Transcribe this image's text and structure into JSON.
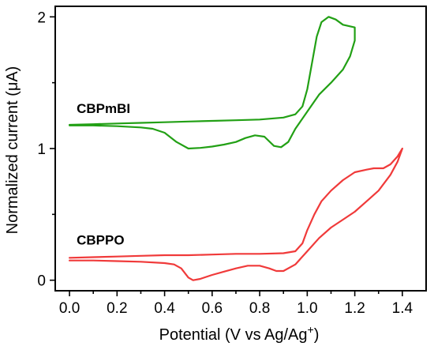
{
  "chart_data": {
    "type": "line",
    "title": "",
    "xlabel_main": "Potential (V vs Ag/Ag",
    "xlabel_sup": "+",
    "xlabel_close": ")",
    "ylabel": "Normalized current (μA)",
    "xlim": [
      -0.06,
      1.5
    ],
    "ylim": [
      -0.08,
      2.08
    ],
    "xticks": [
      0.0,
      0.2,
      0.4,
      0.6,
      0.8,
      1.0,
      1.2,
      1.4
    ],
    "xtick_labels": [
      "0.0",
      "0.2",
      "0.4",
      "0.6",
      "0.8",
      "1.0",
      "1.2",
      "1.4"
    ],
    "yticks": [
      0,
      1,
      2
    ],
    "ytick_labels": [
      "0",
      "1",
      "2"
    ],
    "grid": false,
    "legend": "none",
    "series": [
      {
        "name": "CBPmBI",
        "color": "#22a015",
        "label_at": [
          0.03,
          1.27
        ],
        "points": [
          [
            0.0,
            1.18
          ],
          [
            0.1,
            1.185
          ],
          [
            0.2,
            1.19
          ],
          [
            0.3,
            1.195
          ],
          [
            0.4,
            1.2
          ],
          [
            0.5,
            1.205
          ],
          [
            0.6,
            1.21
          ],
          [
            0.7,
            1.215
          ],
          [
            0.8,
            1.22
          ],
          [
            0.9,
            1.235
          ],
          [
            0.95,
            1.26
          ],
          [
            0.98,
            1.32
          ],
          [
            1.0,
            1.45
          ],
          [
            1.02,
            1.65
          ],
          [
            1.04,
            1.85
          ],
          [
            1.06,
            1.96
          ],
          [
            1.09,
            2.0
          ],
          [
            1.12,
            1.98
          ],
          [
            1.15,
            1.94
          ],
          [
            1.2,
            1.92
          ],
          [
            1.2,
            1.82
          ],
          [
            1.18,
            1.7
          ],
          [
            1.15,
            1.6
          ],
          [
            1.1,
            1.5
          ],
          [
            1.05,
            1.41
          ],
          [
            1.0,
            1.28
          ],
          [
            0.95,
            1.15
          ],
          [
            0.92,
            1.05
          ],
          [
            0.89,
            1.01
          ],
          [
            0.86,
            1.02
          ],
          [
            0.82,
            1.09
          ],
          [
            0.78,
            1.1
          ],
          [
            0.74,
            1.08
          ],
          [
            0.7,
            1.05
          ],
          [
            0.65,
            1.03
          ],
          [
            0.6,
            1.015
          ],
          [
            0.55,
            1.005
          ],
          [
            0.5,
            1.0
          ],
          [
            0.45,
            1.05
          ],
          [
            0.4,
            1.12
          ],
          [
            0.35,
            1.15
          ],
          [
            0.3,
            1.16
          ],
          [
            0.2,
            1.17
          ],
          [
            0.1,
            1.175
          ],
          [
            0.0,
            1.175
          ]
        ]
      },
      {
        "name": "CBPPO",
        "color": "#f03a3a",
        "label_at": [
          0.03,
          0.27
        ],
        "points": [
          [
            0.0,
            0.17
          ],
          [
            0.1,
            0.175
          ],
          [
            0.2,
            0.18
          ],
          [
            0.3,
            0.185
          ],
          [
            0.4,
            0.19
          ],
          [
            0.5,
            0.19
          ],
          [
            0.6,
            0.195
          ],
          [
            0.7,
            0.2
          ],
          [
            0.8,
            0.2
          ],
          [
            0.9,
            0.205
          ],
          [
            0.95,
            0.22
          ],
          [
            0.98,
            0.28
          ],
          [
            1.0,
            0.38
          ],
          [
            1.03,
            0.5
          ],
          [
            1.06,
            0.6
          ],
          [
            1.1,
            0.68
          ],
          [
            1.15,
            0.76
          ],
          [
            1.2,
            0.82
          ],
          [
            1.25,
            0.84
          ],
          [
            1.28,
            0.85
          ],
          [
            1.32,
            0.85
          ],
          [
            1.35,
            0.88
          ],
          [
            1.38,
            0.94
          ],
          [
            1.4,
            1.0
          ],
          [
            1.38,
            0.9
          ],
          [
            1.35,
            0.8
          ],
          [
            1.3,
            0.68
          ],
          [
            1.25,
            0.6
          ],
          [
            1.2,
            0.52
          ],
          [
            1.15,
            0.46
          ],
          [
            1.1,
            0.4
          ],
          [
            1.05,
            0.32
          ],
          [
            1.0,
            0.22
          ],
          [
            0.95,
            0.12
          ],
          [
            0.9,
            0.07
          ],
          [
            0.87,
            0.07
          ],
          [
            0.84,
            0.09
          ],
          [
            0.8,
            0.11
          ],
          [
            0.75,
            0.11
          ],
          [
            0.7,
            0.09
          ],
          [
            0.65,
            0.065
          ],
          [
            0.6,
            0.04
          ],
          [
            0.55,
            0.01
          ],
          [
            0.52,
            0.0
          ],
          [
            0.5,
            0.02
          ],
          [
            0.47,
            0.09
          ],
          [
            0.44,
            0.12
          ],
          [
            0.4,
            0.13
          ],
          [
            0.3,
            0.14
          ],
          [
            0.2,
            0.145
          ],
          [
            0.1,
            0.15
          ],
          [
            0.0,
            0.15
          ]
        ]
      }
    ]
  }
}
